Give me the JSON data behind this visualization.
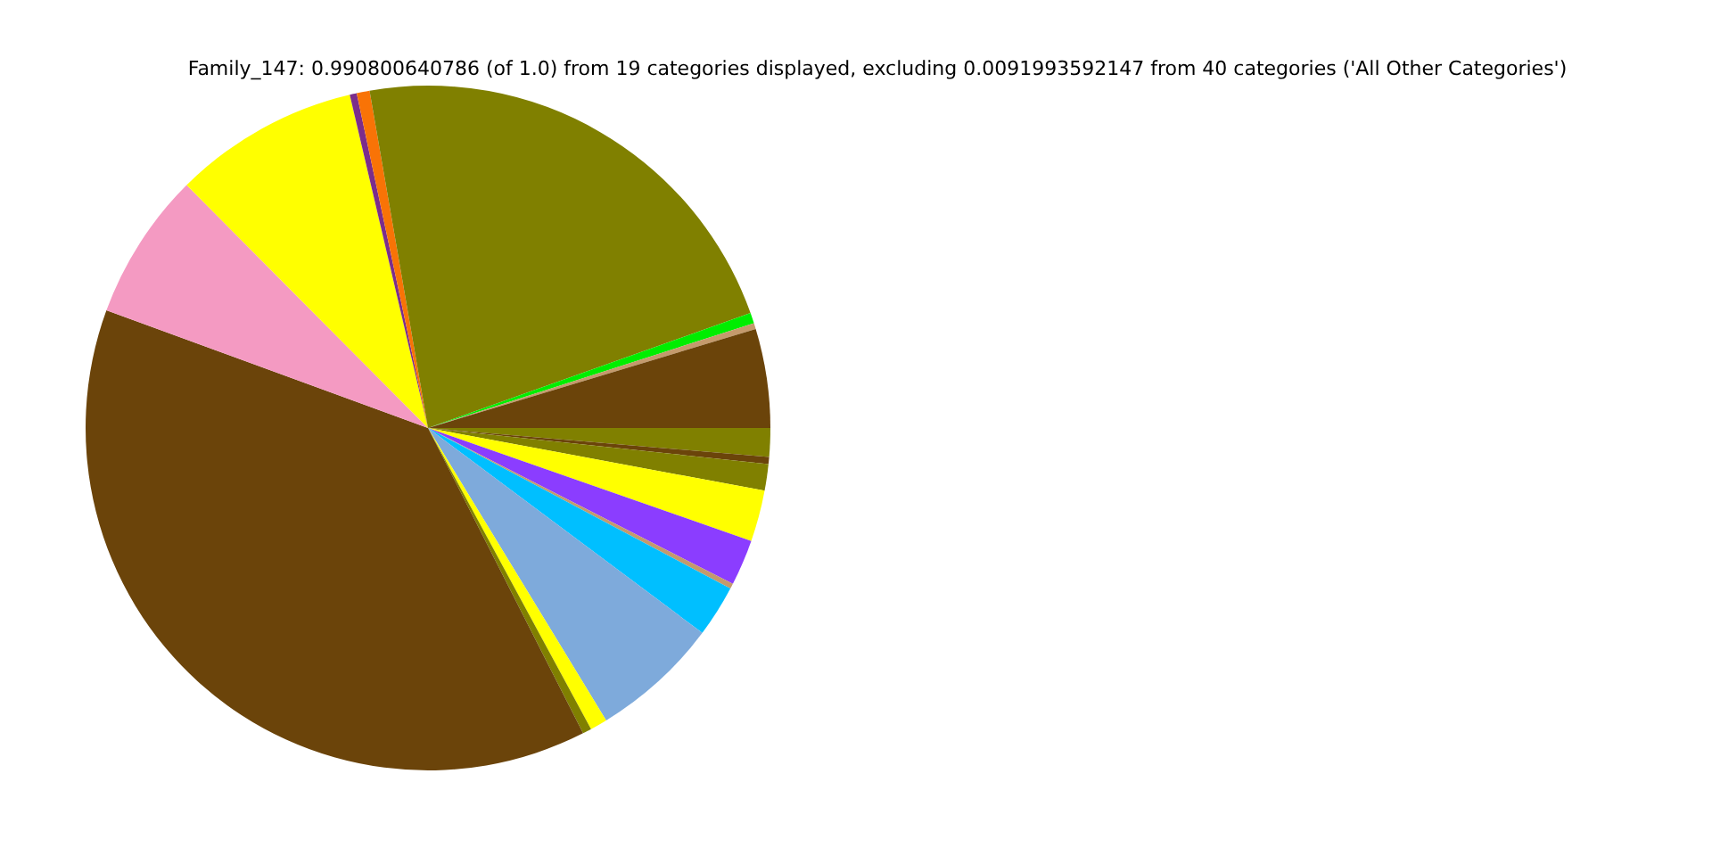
{
  "chart_data": {
    "type": "pie",
    "title": "Family_147: 0.990800640786 (of 1.0) from 19 categories displayed, excluding 0.0091993592147 from 40 categories ('All Other Categories')",
    "categories": [
      null,
      null,
      null,
      null,
      null,
      null,
      null,
      null,
      null,
      null,
      null,
      null,
      null,
      null,
      null,
      null,
      null,
      null,
      null
    ],
    "values": [
      1.35,
      0.33,
      1.25,
      2.42,
      2.17,
      0.25,
      2.44,
      6.08,
      0.81,
      0.42,
      38.06,
      6.97,
      8.78,
      0.33,
      0.61,
      22.28,
      0.5,
      0.28,
      4.67
    ],
    "colors": [
      "#808000",
      "#6b440a",
      "#808000",
      "#ffff00",
      "#8b3dff",
      "#c49a6c",
      "#00bfff",
      "#7eaadb",
      "#ffff00",
      "#808000",
      "#6b440a",
      "#f49ac2",
      "#ffff00",
      "#7b2d8b",
      "#f97306",
      "#808000",
      "#00ee00",
      "#c49a6c",
      "#6b440a"
    ],
    "legend": false
  }
}
